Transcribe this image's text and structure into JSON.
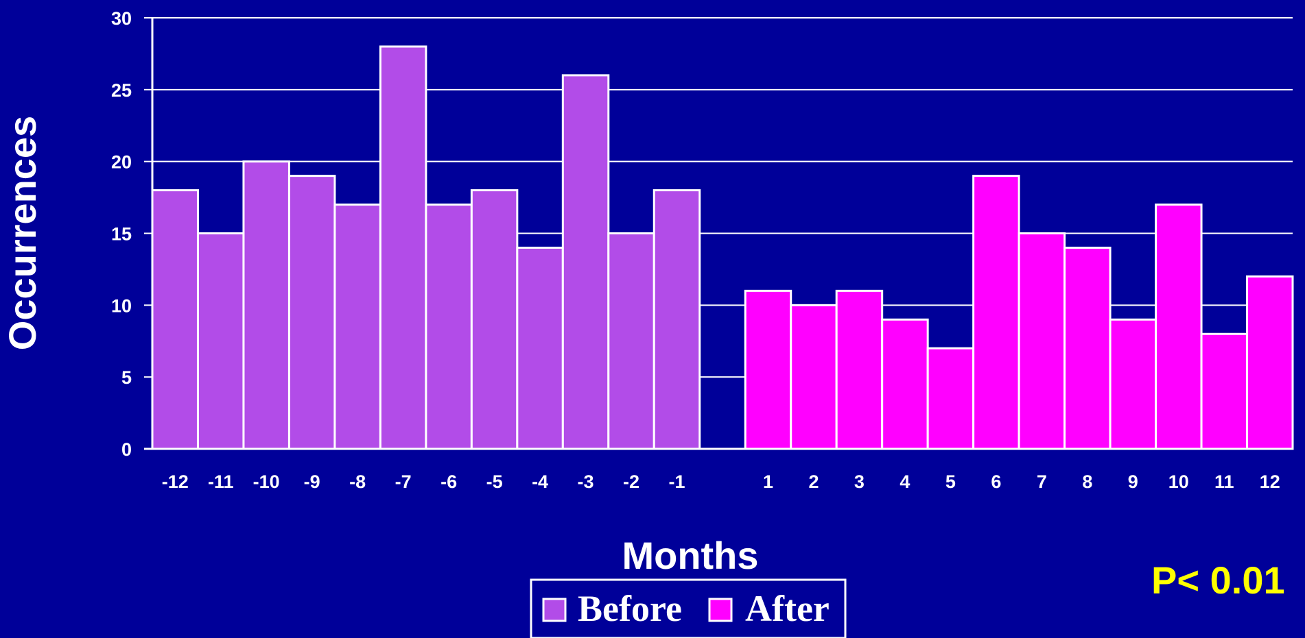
{
  "chart_data": {
    "type": "bar",
    "ylabel": "Occurrences",
    "xlabel": "Months",
    "ylim": [
      0,
      30
    ],
    "yticks": [
      0,
      5,
      10,
      15,
      20,
      25,
      30
    ],
    "grid": true,
    "legend_position": "bottom-center",
    "annotation": "P< 0.01",
    "series": [
      {
        "name": "Before",
        "color": "#b24ce8",
        "categories": [
          "-12",
          "-11",
          "-10",
          "-9",
          "-8",
          "-7",
          "-6",
          "-5",
          "-4",
          "-3",
          "-2",
          "-1"
        ],
        "values": [
          18,
          15,
          20,
          19,
          17,
          28,
          17,
          18,
          14,
          26,
          15,
          18
        ]
      },
      {
        "name": "After",
        "color": "#ff00ff",
        "categories": [
          "1",
          "2",
          "3",
          "4",
          "5",
          "6",
          "7",
          "8",
          "9",
          "10",
          "11",
          "12"
        ],
        "values": [
          11,
          10,
          11,
          9,
          7,
          19,
          15,
          14,
          9,
          17,
          8,
          12
        ]
      }
    ]
  }
}
